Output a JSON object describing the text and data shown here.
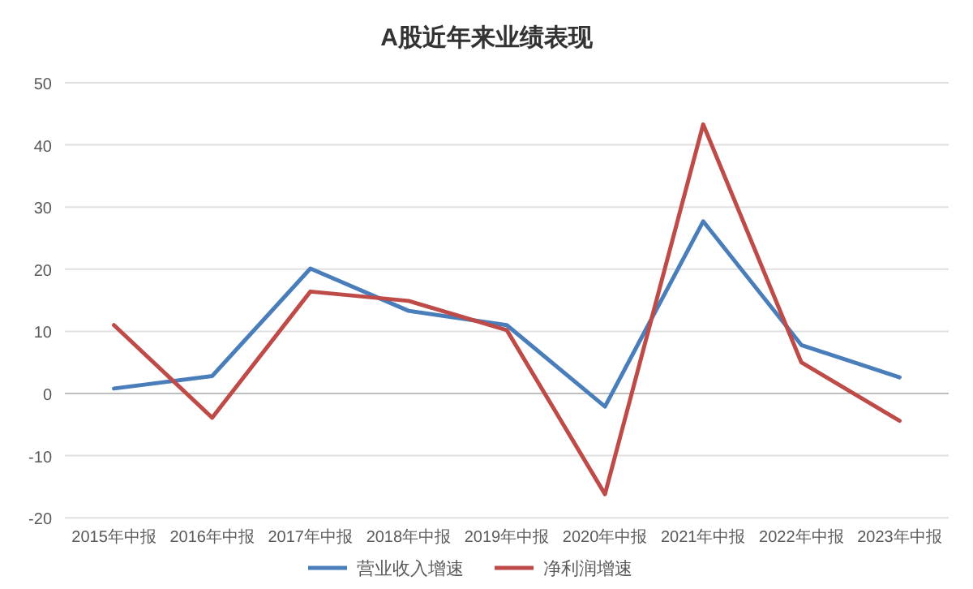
{
  "chart_data": {
    "type": "line",
    "title": "A股近年来业绩表现",
    "categories": [
      "2015年中报",
      "2016年中报",
      "2017年中报",
      "2018年中报",
      "2019年中报",
      "2020年中报",
      "2021年中报",
      "2022年中报",
      "2023年中报"
    ],
    "series": [
      {
        "name": "营业收入增速",
        "color": "#4a7ebb",
        "values": [
          0.8,
          2.8,
          20.1,
          13.3,
          11,
          -2.1,
          27.7,
          7.8,
          2.6
        ]
      },
      {
        "name": "净利润增速",
        "color": "#be4b48",
        "values": [
          11,
          -3.9,
          16.4,
          14.9,
          10.2,
          -16.2,
          43.3,
          5,
          -4.4
        ]
      }
    ],
    "ylim": [
      -20,
      50
    ],
    "yticks": [
      -20,
      -10,
      0,
      10,
      20,
      30,
      40,
      50
    ],
    "grid": "y",
    "legend": "bottom",
    "marker": "none",
    "line_style": "solid"
  }
}
